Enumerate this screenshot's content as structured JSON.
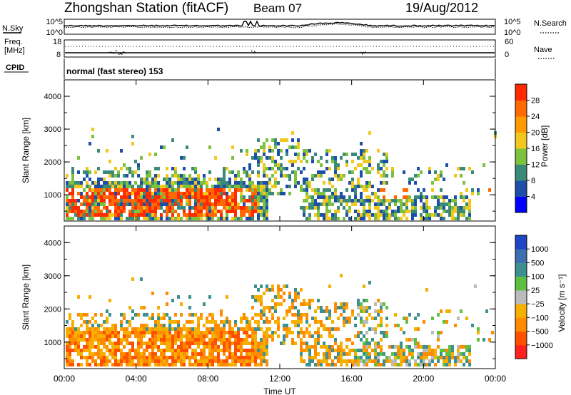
{
  "header": {
    "station": "Zhongshan Station (fitACF)",
    "beam": "Beam 07",
    "date": "19/Aug/2012"
  },
  "noise_panel": {
    "left_label": "N.Sky",
    "left_ticks": [
      "10^5",
      "10^0"
    ],
    "right_label": "N.Search",
    "right_ticks": [
      "10^5",
      "10^0"
    ]
  },
  "freq_panel": {
    "left_label_1": "Freq.",
    "left_label_2": "[MHz]",
    "left_ticks": [
      "18",
      "8"
    ],
    "right_label": "Nave",
    "right_ticks": [
      "60",
      "0"
    ]
  },
  "cpid": {
    "label": "CPID",
    "mode": "normal (fast stereo) 153"
  },
  "colors": {
    "power_scale": [
      "#0000ff",
      "#1e4fa8",
      "#3a8a7a",
      "#7cc23e",
      "#f2c81e",
      "#ff9a00",
      "#ff6a00",
      "#ff2a00"
    ],
    "velocity_scale": [
      "#2046c8",
      "#3b6fb0",
      "#3c9090",
      "#5fc040",
      "#bbbbbb",
      "#f5b000",
      "#ff8c00",
      "#ff5000",
      "#ff2020"
    ]
  },
  "chart_data": [
    {
      "type": "heatmap",
      "panel": "power",
      "ylabel": "Slant Range [km]",
      "y_ticks": [
        "1000",
        "2000",
        "3000",
        "4000"
      ],
      "ylim": [
        200,
        4500
      ],
      "xlim": [
        0,
        24
      ],
      "colorbar_label": "Power [dB]",
      "colorbar_ticks": [
        "4",
        "8",
        "12",
        "16",
        "20",
        "24",
        "28"
      ],
      "colorbar_range": [
        0,
        32
      ]
    },
    {
      "type": "heatmap",
      "panel": "velocity",
      "ylabel": "Slant Range [km]",
      "y_ticks": [
        "1000",
        "2000",
        "3000",
        "4000"
      ],
      "ylim": [
        200,
        4500
      ],
      "xlim": [
        0,
        24
      ],
      "colorbar_label": "Velocity [m s⁻¹]",
      "colorbar_ticks": [
        "1000",
        "500",
        "100",
        "25",
        "−25",
        "−100",
        "−500",
        "−1000"
      ]
    }
  ],
  "x_axis": {
    "label": "Time UT",
    "ticks": [
      "00:00",
      "04:00",
      "08:00",
      "12:00",
      "16:00",
      "20:00",
      "00:00"
    ]
  }
}
